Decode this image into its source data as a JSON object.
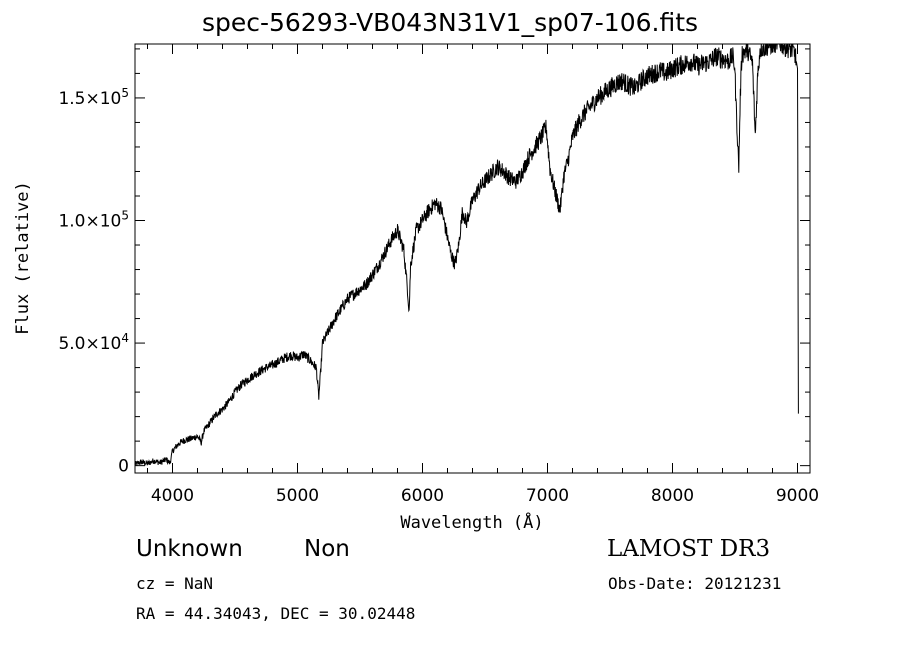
{
  "header": {
    "title": "spec-56293-VB043N31V1_sp07-106.fits"
  },
  "info": {
    "object_class": "Unknown",
    "object_subclass": "Non",
    "survey": "LAMOST DR3",
    "cz": "cz = NaN",
    "obs_date": "Obs-Date: 20121231",
    "ra_dec": "RA =  44.34043, DEC =  30.02448"
  },
  "chart_data": {
    "type": "line",
    "title": "spec-56293-VB043N31V1_sp07-106.fits",
    "xlabel": "Wavelength (Å)",
    "ylabel": "Flux (relative)",
    "xlim": [
      3700,
      9100
    ],
    "ylim": [
      -3000,
      172000
    ],
    "x_ticks": [
      4000,
      5000,
      6000,
      7000,
      8000,
      9000
    ],
    "x_tick_labels": [
      "4000",
      "5000",
      "6000",
      "7000",
      "8000",
      "9000"
    ],
    "y_ticks": [
      0,
      50000,
      100000,
      150000
    ],
    "y_tick_labels": [
      {
        "mant": "0",
        "exp": ""
      },
      {
        "mant": "5.0×10",
        "exp": "4"
      },
      {
        "mant": "1.0×10",
        "exp": "5"
      },
      {
        "mant": "1.5×10",
        "exp": "5"
      }
    ],
    "series": [
      {
        "name": "flux",
        "x": [
          3700,
          3750,
          3800,
          3850,
          3900,
          3950,
          3980,
          4000,
          4050,
          4100,
          4150,
          4200,
          4230,
          4250,
          4300,
          4350,
          4400,
          4450,
          4500,
          4550,
          4600,
          4650,
          4700,
          4750,
          4800,
          4850,
          4900,
          4950,
          5000,
          5050,
          5100,
          5150,
          5170,
          5185,
          5200,
          5250,
          5300,
          5350,
          5400,
          5450,
          5500,
          5550,
          5600,
          5650,
          5700,
          5750,
          5800,
          5850,
          5880,
          5893,
          5905,
          5950,
          6000,
          6050,
          6100,
          6150,
          6200,
          6230,
          6260,
          6290,
          6320,
          6350,
          6400,
          6450,
          6500,
          6550,
          6600,
          6650,
          6700,
          6750,
          6800,
          6850,
          6900,
          6950,
          6990,
          7020,
          7060,
          7100,
          7130,
          7170,
          7200,
          7250,
          7300,
          7350,
          7400,
          7450,
          7500,
          7550,
          7600,
          7650,
          7700,
          7750,
          7800,
          7850,
          7900,
          7950,
          8000,
          8050,
          8100,
          8150,
          8200,
          8250,
          8300,
          8350,
          8400,
          8450,
          8480,
          8498,
          8510,
          8530,
          8542,
          8555,
          8580,
          8600,
          8640,
          8662,
          8680,
          8700,
          8750,
          8800,
          8850,
          8900,
          8950,
          8980,
          9000,
          9003,
          9006,
          9008
        ],
        "values": [
          500,
          1500,
          800,
          2000,
          1200,
          2500,
          1000,
          6000,
          9000,
          10500,
          11000,
          12000,
          9500,
          14000,
          17500,
          21000,
          23000,
          26000,
          30000,
          33000,
          35000,
          37000,
          38500,
          40000,
          41000,
          42500,
          44000,
          45000,
          44000,
          45500,
          43000,
          40000,
          28000,
          38000,
          50000,
          55000,
          60000,
          64000,
          68000,
          70000,
          72000,
          74000,
          78000,
          82000,
          87000,
          92000,
          96000,
          88000,
          72000,
          63000,
          82000,
          96000,
          100000,
          104000,
          107000,
          105000,
          93000,
          86000,
          82000,
          90000,
          104000,
          99000,
          108000,
          113000,
          116000,
          119000,
          122000,
          120000,
          117000,
          116000,
          120000,
          126000,
          130000,
          134000,
          138000,
          121000,
          112000,
          104000,
          118000,
          126000,
          134000,
          140000,
          144000,
          147000,
          150000,
          152000,
          154000,
          156000,
          157000,
          155000,
          154000,
          157000,
          159000,
          160000,
          161000,
          160000,
          162000,
          163000,
          164000,
          165000,
          163000,
          164000,
          165000,
          167000,
          166000,
          165000,
          167000,
          163000,
          145000,
          122000,
          150000,
          168000,
          169000,
          170000,
          164000,
          134000,
          158000,
          170000,
          171000,
          172000,
          173000,
          171000,
          170000,
          168000,
          162000,
          120000,
          40000,
          15000
        ]
      }
    ]
  }
}
